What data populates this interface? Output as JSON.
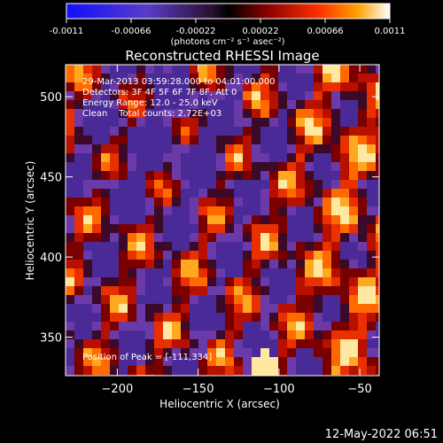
{
  "chart_data": {
    "type": "heatmap",
    "title": "Reconstructed RHESSI Image",
    "xlabel": "Heliocentric X (arcsec)",
    "ylabel": "Heliocentric Y (arcsec)",
    "xlim": [
      -232,
      -38
    ],
    "ylim": [
      326,
      520
    ],
    "x_ticks": [
      -200,
      -150,
      -100,
      -50
    ],
    "y_ticks": [
      350,
      400,
      450,
      500
    ],
    "colorbar": {
      "min": -0.0011,
      "max": 0.0011,
      "ticks": [
        "-0.0011",
        "-0.00066",
        "-0.00022",
        "0.00022",
        "0.00066",
        "0.0011"
      ],
      "unit_label": "(photons cm⁻² s⁻¹ asec⁻²)"
    },
    "annotations": [
      "29-Mar-2013 03:59:28.000 to 04:01:00.000",
      "Detectors: 3F 4F 5F 6F 7F 8F, Att 0",
      "Energy Range: 12.0 - 25.0 keV",
      "Clean    Total counts: 2.72E+03"
    ],
    "peak_label": "Position of Peak = [-111,334]",
    "peak": [
      -111,
      334
    ]
  },
  "footer": {
    "timestamp": "12-May-2022 06:51"
  }
}
